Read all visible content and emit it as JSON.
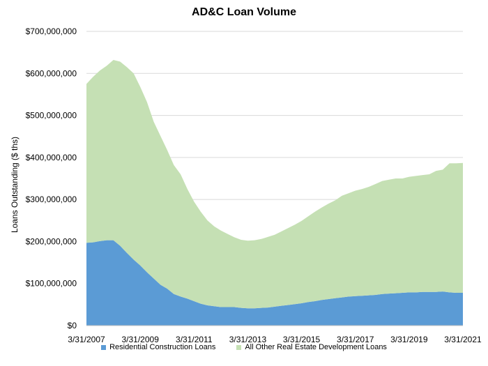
{
  "chart_data": {
    "type": "area",
    "stacked": true,
    "title": "AD&C Loan Volume",
    "ylabel": "Loans Outstanding ($ ths)",
    "xlabel": "",
    "ylim": [
      0,
      700000000
    ],
    "y_ticks": [
      "$0",
      "$100,000,000",
      "$200,000,000",
      "$300,000,000",
      "$400,000,000",
      "$500,000,000",
      "$600,000,000",
      "$700,000,000"
    ],
    "x_range": [
      "2007-03-31",
      "2021-03-31"
    ],
    "x_tick_labels": [
      "3/31/2007",
      "3/31/2009",
      "3/31/2011",
      "3/31/2013",
      "3/31/2015",
      "3/31/2017",
      "3/31/2019",
      "3/31/2021"
    ],
    "grid": "horizontal",
    "legend_position": "bottom",
    "x": [
      "2007-03-31",
      "2007-06-30",
      "2007-09-30",
      "2007-12-31",
      "2008-03-31",
      "2008-06-30",
      "2008-09-30",
      "2008-12-31",
      "2009-03-31",
      "2009-06-30",
      "2009-09-30",
      "2009-12-31",
      "2010-03-31",
      "2010-06-30",
      "2010-09-30",
      "2010-12-31",
      "2011-03-31",
      "2011-06-30",
      "2011-09-30",
      "2011-12-31",
      "2012-03-31",
      "2012-06-30",
      "2012-09-30",
      "2012-12-31",
      "2013-03-31",
      "2013-06-30",
      "2013-09-30",
      "2013-12-31",
      "2014-03-31",
      "2014-06-30",
      "2014-09-30",
      "2014-12-31",
      "2015-03-31",
      "2015-06-30",
      "2015-09-30",
      "2015-12-31",
      "2016-03-31",
      "2016-06-30",
      "2016-09-30",
      "2016-12-31",
      "2017-03-31",
      "2017-06-30",
      "2017-09-30",
      "2017-12-31",
      "2018-03-31",
      "2018-06-30",
      "2018-09-30",
      "2018-12-31",
      "2019-03-31",
      "2019-06-30",
      "2019-09-30",
      "2019-12-31",
      "2020-03-31",
      "2020-06-30",
      "2020-09-30",
      "2020-12-31",
      "2021-03-31"
    ],
    "series": [
      {
        "name": "Residential Construction Loans",
        "color": "#5b9bd5",
        "values": [
          197000000,
          198000000,
          201000000,
          203000000,
          203000000,
          190000000,
          173000000,
          157000000,
          143000000,
          127000000,
          112000000,
          97000000,
          88000000,
          75000000,
          69000000,
          64000000,
          58000000,
          52000000,
          48000000,
          46000000,
          44000000,
          44000000,
          44000000,
          42000000,
          41000000,
          41000000,
          42000000,
          43000000,
          45000000,
          47000000,
          49000000,
          51000000,
          53000000,
          56000000,
          58000000,
          61000000,
          63000000,
          65000000,
          67000000,
          69000000,
          70000000,
          71000000,
          72000000,
          73000000,
          75000000,
          76000000,
          77000000,
          78000000,
          79000000,
          79000000,
          80000000,
          80000000,
          80000000,
          81000000,
          79000000,
          78000000,
          78000000
        ]
      },
      {
        "name": "All Other Real Estate Development Loans",
        "color": "#c5e0b4",
        "values": [
          378000000,
          394000000,
          406000000,
          415000000,
          429000000,
          438000000,
          442000000,
          443000000,
          425000000,
          405000000,
          373000000,
          354000000,
          330000000,
          307000000,
          291000000,
          261000000,
          237000000,
          219000000,
          202000000,
          190000000,
          182000000,
          174000000,
          166000000,
          162000000,
          161000000,
          162000000,
          164000000,
          168000000,
          171000000,
          177000000,
          183000000,
          189000000,
          196000000,
          204000000,
          213000000,
          220000000,
          227000000,
          233000000,
          242000000,
          246000000,
          251000000,
          254000000,
          258000000,
          264000000,
          269000000,
          271000000,
          273000000,
          272000000,
          275000000,
          277000000,
          278000000,
          280000000,
          288000000,
          290000000,
          307000000,
          308000000,
          309000000
        ]
      }
    ]
  }
}
